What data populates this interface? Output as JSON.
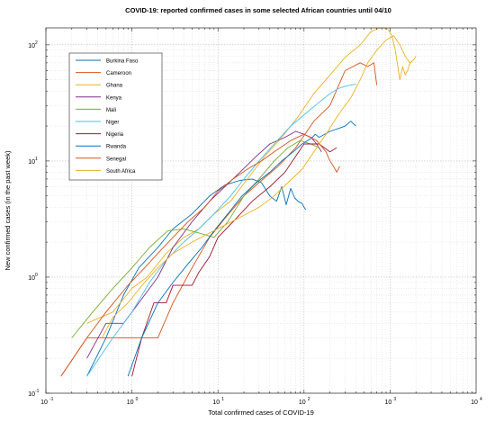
{
  "chart_data": {
    "type": "line",
    "title": "COVID-19: reported confirmed cases in some selected African countries until 04/10",
    "xlabel": "Total confirmed cases of COVID-19",
    "ylabel": "New confirmed cases (in the past week)",
    "xscale": "log",
    "yscale": "log",
    "xlim": [
      0.1,
      10000
    ],
    "ylim": [
      0.1,
      140
    ],
    "grid": true,
    "minor_grid": true,
    "legend_position": "top-left",
    "x_ticks": [
      {
        "value": 0.1,
        "base": "10",
        "exp": "-1"
      },
      {
        "value": 1,
        "base": "10",
        "exp": "0"
      },
      {
        "value": 10,
        "base": "10",
        "exp": "1"
      },
      {
        "value": 100,
        "base": "10",
        "exp": "2"
      },
      {
        "value": 1000,
        "base": "10",
        "exp": "3"
      },
      {
        "value": 10000,
        "base": "10",
        "exp": "4"
      }
    ],
    "y_ticks": [
      {
        "value": 0.1,
        "base": "10",
        "exp": "-1"
      },
      {
        "value": 1,
        "base": "10",
        "exp": "0"
      },
      {
        "value": 10,
        "base": "10",
        "exp": "1"
      },
      {
        "value": 100,
        "base": "10",
        "exp": "2"
      }
    ],
    "series": [
      {
        "name": "Burkina Faso",
        "color": "#0072bd",
        "x": [
          0.3,
          0.5,
          0.8,
          1.2,
          2,
          3,
          5,
          8,
          12,
          18,
          25,
          32,
          40,
          48,
          55,
          62,
          70,
          78,
          85,
          95,
          100,
          105
        ],
        "y": [
          0.14,
          0.3,
          0.7,
          1.2,
          1.8,
          2.6,
          3.5,
          5,
          6.2,
          6.8,
          7,
          6.5,
          5,
          4.5,
          6,
          4.2,
          5.8,
          4.8,
          4.5,
          4.3,
          4.0,
          3.8
        ]
      },
      {
        "name": "Cameroon",
        "color": "#d95319",
        "x": [
          0.15,
          0.3,
          0.5,
          0.8,
          1.2,
          2,
          3,
          5,
          8,
          12,
          20,
          30,
          50,
          80,
          130,
          200,
          300,
          450,
          550,
          650,
          700
        ],
        "y": [
          0.14,
          0.3,
          0.3,
          0.3,
          0.3,
          0.3,
          0.6,
          1.2,
          2.2,
          3.2,
          5.0,
          6.5,
          9,
          13,
          22,
          30,
          60,
          70,
          65,
          70,
          45
        ]
      },
      {
        "name": "Ghana",
        "color": "#edb120",
        "x": [
          0.3,
          0.6,
          1,
          1.5,
          2.5,
          4,
          6,
          9,
          14,
          22,
          35,
          55,
          85,
          130,
          200,
          300,
          450,
          600,
          750,
          850,
          950,
          1050,
          1150,
          1250,
          1300,
          1400,
          1500,
          1600,
          1700,
          1800
        ],
        "y": [
          0.4,
          0.5,
          0.8,
          1.0,
          1.6,
          2.2,
          2.6,
          3.5,
          4.5,
          7,
          11,
          16,
          24,
          38,
          55,
          78,
          100,
          130,
          140,
          140,
          135,
          120,
          90,
          60,
          50,
          65,
          55,
          60,
          70,
          72
        ]
      },
      {
        "name": "Kenya",
        "color": "#7e2f8e",
        "x": [
          0.3,
          0.5,
          0.8,
          1.2,
          2,
          3,
          5,
          8,
          12,
          18,
          28,
          40,
          60,
          80,
          100,
          120,
          140,
          160
        ],
        "y": [
          0.2,
          0.4,
          0.4,
          0.6,
          1.0,
          1.8,
          3.0,
          4.5,
          6.0,
          8.0,
          11,
          14,
          16,
          18,
          17,
          16,
          14,
          12
        ]
      },
      {
        "name": "Mali",
        "color": "#77ac30",
        "x": [
          0.2,
          0.35,
          0.6,
          1,
          1.6,
          2.6,
          4,
          6,
          9,
          13,
          20,
          30,
          45,
          65,
          90,
          120,
          150
        ],
        "y": [
          0.3,
          0.5,
          0.8,
          1.2,
          1.8,
          2.5,
          2.6,
          2.4,
          2.2,
          3.0,
          5,
          7,
          10,
          13,
          15,
          14,
          13
        ]
      },
      {
        "name": "Niger",
        "color": "#4dbeee",
        "x": [
          0.3,
          0.6,
          1,
          1.6,
          2.5,
          4,
          6,
          9,
          14,
          20,
          30,
          45,
          70,
          100,
          150,
          200,
          250,
          300,
          350,
          400
        ],
        "y": [
          0.14,
          0.3,
          0.5,
          0.9,
          1.4,
          2.0,
          2.6,
          3.5,
          5,
          7,
          10,
          14,
          20,
          25,
          32,
          38,
          42,
          44,
          45,
          46
        ]
      },
      {
        "name": "Nigeria",
        "color": "#a2142f",
        "x": [
          1,
          1.3,
          1.8,
          2.5,
          3,
          4,
          5,
          6,
          8,
          10,
          15,
          25,
          40,
          60,
          100,
          150,
          200,
          240
        ],
        "y": [
          0.14,
          0.3,
          0.6,
          0.6,
          0.85,
          0.85,
          0.85,
          1.1,
          1.5,
          2.2,
          3.0,
          4.5,
          6,
          8,
          14,
          14,
          12,
          13
        ]
      },
      {
        "name": "Rwanda",
        "color": "#0072bd",
        "x": [
          0.9,
          1.3,
          2,
          3,
          4.5,
          6.5,
          9,
          13,
          19,
          28,
          40,
          55,
          75,
          95,
          110,
          125,
          135,
          150,
          200,
          250,
          300,
          350,
          400
        ],
        "y": [
          0.14,
          0.3,
          0.6,
          0.9,
          1.3,
          1.8,
          2.5,
          3.5,
          5,
          6.5,
          8,
          10,
          12,
          14,
          15,
          16,
          17,
          16,
          18,
          19,
          20,
          22,
          20
        ]
      },
      {
        "name": "Senegal",
        "color": "#d95319",
        "x": [
          0.15,
          0.3,
          0.5,
          0.9,
          1.4,
          2,
          3,
          4.5,
          7,
          10,
          15,
          22,
          32,
          45,
          70,
          100,
          140,
          180,
          200,
          220,
          240,
          260
        ],
        "y": [
          0.14,
          0.3,
          0.5,
          0.85,
          1.2,
          1.6,
          2.2,
          3.0,
          4.0,
          5.5,
          7.0,
          8.5,
          10,
          12,
          15,
          17,
          15,
          12,
          10,
          9,
          8,
          9
        ]
      },
      {
        "name": "South Africa",
        "color": "#edb120",
        "x": [
          0.45,
          0.6,
          0.9,
          1.4,
          2,
          3,
          5,
          8,
          12,
          20,
          30,
          45,
          65,
          95,
          130,
          180,
          250,
          350,
          450,
          550,
          700,
          900,
          1100,
          1300,
          1500,
          1700,
          1900,
          2000
        ],
        "y": [
          0.3,
          0.45,
          0.6,
          0.9,
          1.2,
          1.6,
          2.0,
          2.4,
          2.8,
          3.4,
          4.0,
          5.0,
          6.5,
          8.5,
          12,
          17,
          25,
          35,
          50,
          70,
          90,
          110,
          120,
          100,
          80,
          70,
          75,
          80
        ]
      }
    ]
  }
}
